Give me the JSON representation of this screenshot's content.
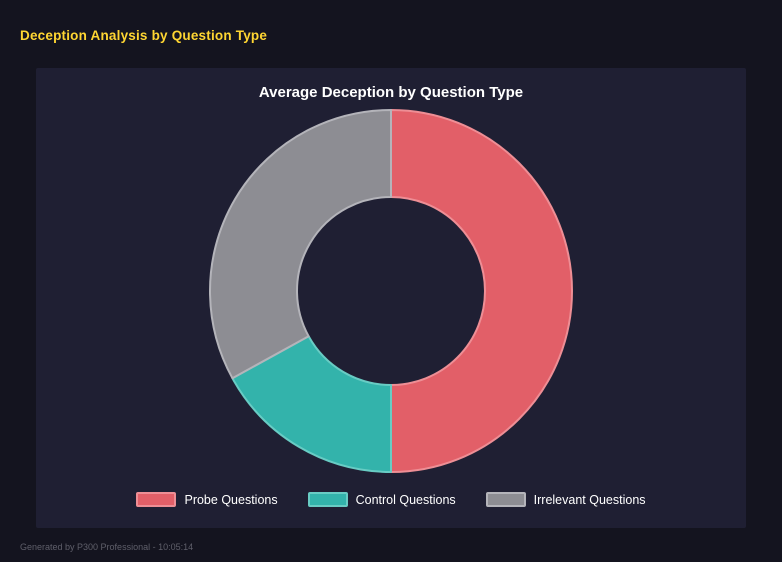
{
  "page": {
    "title": "Deception Analysis by Question Type",
    "footer": "Generated by P300 Professional - 10:05:14"
  },
  "chart_data": {
    "type": "pie",
    "subtype": "donut",
    "title": "Average Deception by Question Type",
    "categories": [
      "Probe Questions",
      "Control Questions",
      "Irrelevant Questions"
    ],
    "values": [
      50,
      17,
      33
    ],
    "unit": "percent",
    "colors": [
      "#e25f68",
      "#33b3ab",
      "#8d8d93"
    ],
    "border_colors": [
      "#ee8e95",
      "#68ccc4",
      "#b4b4ba"
    ],
    "hole_ratio": 0.52,
    "start_angle_deg": 0,
    "direction": "clockwise",
    "legend_position": "bottom",
    "grid": false
  },
  "theme": {
    "background": "#14141f",
    "panel": "#1f1f33",
    "accent_yellow": "#ffd632",
    "legend_text": "#ffffff",
    "footer_text": "#5f5f6a"
  }
}
